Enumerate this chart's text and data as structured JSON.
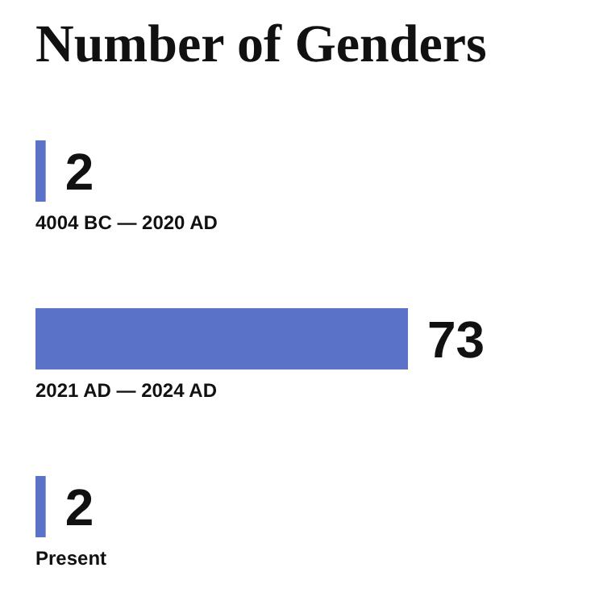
{
  "chart_data": {
    "type": "bar",
    "orientation": "horizontal",
    "title": "Number of Genders",
    "categories": [
      "4004 BC — 2020 AD",
      "2021 AD — 2024 AD",
      "Present"
    ],
    "values": [
      2,
      73,
      2
    ],
    "color": "#5a72c8",
    "data_labels": true,
    "grid": false,
    "legend": false
  }
}
